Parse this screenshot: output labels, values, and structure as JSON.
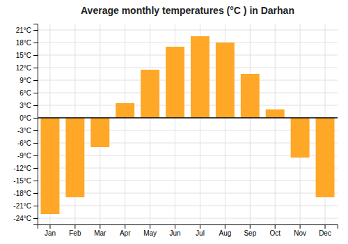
{
  "chart_data": {
    "type": "bar",
    "title": "Average monthly temperatures (°C ) in Darhan",
    "categories": [
      "Jan",
      "Feb",
      "Mar",
      "Apr",
      "May",
      "Jun",
      "Jul",
      "Aug",
      "Sep",
      "Oct",
      "Nov",
      "Dec"
    ],
    "values": [
      -23,
      -19,
      -7,
      3.5,
      11.5,
      17,
      19.5,
      18,
      10.5,
      2,
      -9.5,
      -19
    ],
    "color": "#FFA726",
    "ylim": [
      -25.5,
      22.5
    ],
    "yticks": [
      {
        "value": -24,
        "label": "-24°C"
      },
      {
        "value": -21,
        "label": "-21°C"
      },
      {
        "value": -18,
        "label": "-18°C"
      },
      {
        "value": -15,
        "label": "-15°C"
      },
      {
        "value": -12,
        "label": "-12°C"
      },
      {
        "value": -9,
        "label": "-9°C"
      },
      {
        "value": -6,
        "label": "-6°C"
      },
      {
        "value": -3,
        "label": "-3°C"
      },
      {
        "value": 0,
        "label": "0°C"
      },
      {
        "value": 3,
        "label": "3°C"
      },
      {
        "value": 6,
        "label": "6°C"
      },
      {
        "value": 9,
        "label": "9°C"
      },
      {
        "value": 12,
        "label": "12°C"
      },
      {
        "value": 15,
        "label": "15°C"
      },
      {
        "value": 18,
        "label": "18°C"
      },
      {
        "value": 21,
        "label": "21°C"
      }
    ],
    "grid": true
  }
}
